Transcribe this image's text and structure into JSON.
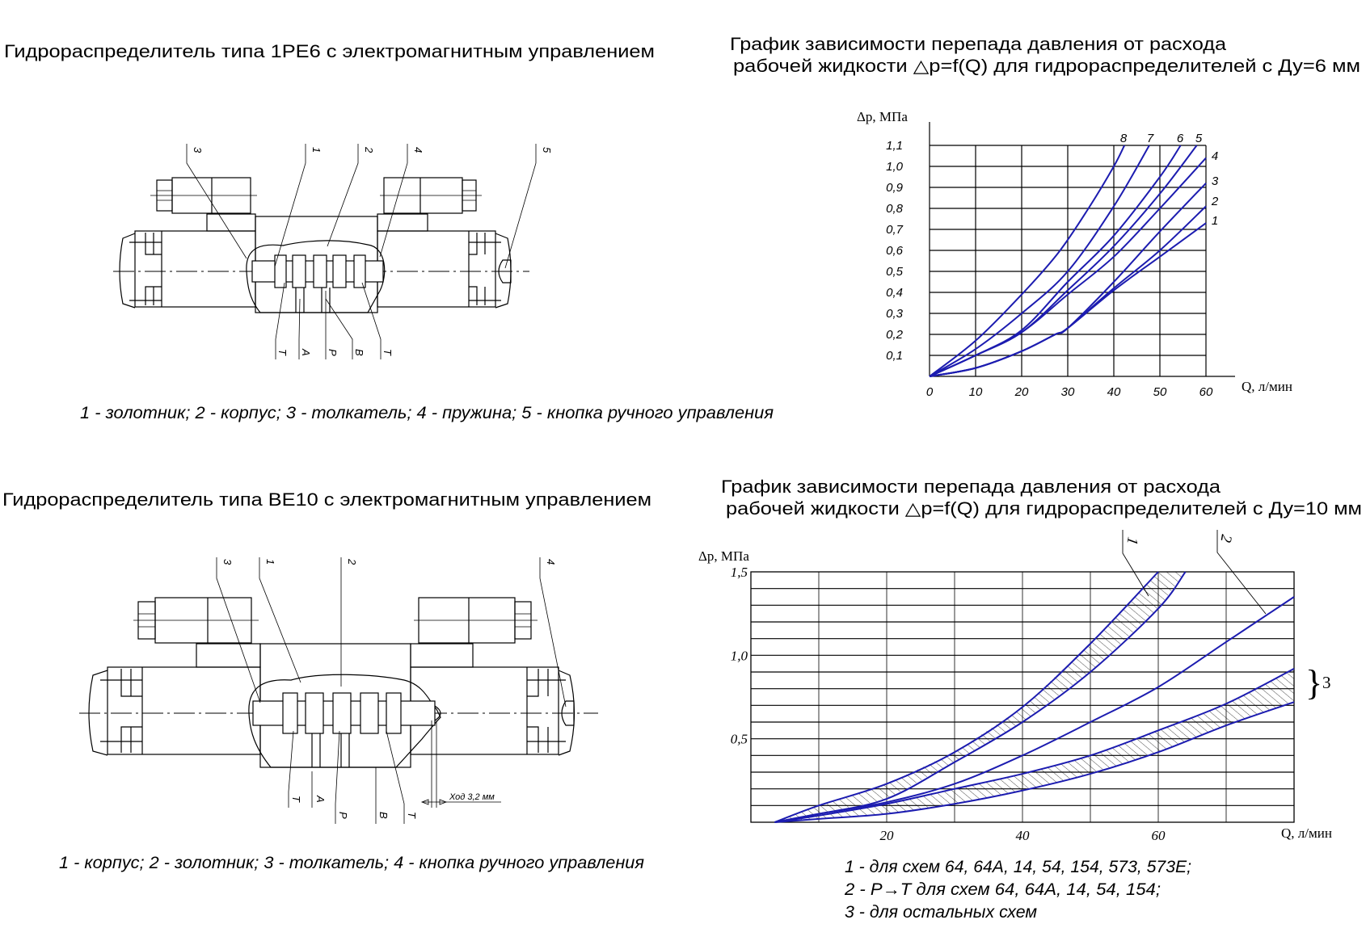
{
  "left_top": {
    "title": "Гидрораспределитель типа 1РЕ6 с электромагнитным управлением",
    "callouts": [
      "3",
      "1",
      "2",
      "4",
      "5"
    ],
    "ports": [
      "T",
      "A",
      "P",
      "B",
      "T"
    ],
    "caption": "1 - золотник; 2 - корпус; 3 - толкатель; 4 - пружина; 5 - кнопка ручного управления"
  },
  "left_bottom": {
    "title": "Гидрораспределитель типа ВЕ10 с электромагнитным управлением",
    "callouts": [
      "3",
      "1",
      "2",
      "4"
    ],
    "ports": [
      "T",
      "A",
      "P",
      "B",
      "T"
    ],
    "stroke_label": "Ход 3,2 мм",
    "caption": "1 - корпус; 2 - золотник; 3 - толкатель; 4 - кнопка ручного управления"
  },
  "curve_color": "#1c1cb0",
  "chart_data": [
    {
      "type": "line",
      "title_lines": [
        "График зависимости перепада давления от расхода",
        "рабочей жидкости △p=f(Q) для гидрораспределителей с Ду=6 мм"
      ],
      "xlabel": "Q, л/мин",
      "ylabel": "Δp, МПа",
      "xlim": [
        0,
        60
      ],
      "ylim": [
        0,
        1.1
      ],
      "grid": true,
      "xticks": [
        "0",
        "10",
        "20",
        "30",
        "40",
        "50",
        "60"
      ],
      "yticks": [
        "0,1",
        "0,2",
        "0,3",
        "0,4",
        "0,5",
        "0,6",
        "0,7",
        "0,8",
        "0,9",
        "1,0",
        "1,1"
      ],
      "series": [
        {
          "name": "8",
          "points": [
            [
              0,
              0
            ],
            [
              10,
              0.17
            ],
            [
              20,
              0.39
            ],
            [
              28,
              0.59
            ],
            [
              34.5,
              0.8
            ],
            [
              40,
              1.0
            ],
            [
              42.3,
              1.1
            ]
          ]
        },
        {
          "name": "7",
          "points": [
            [
              0,
              0
            ],
            [
              10,
              0.13
            ],
            [
              20,
              0.3
            ],
            [
              30,
              0.5
            ],
            [
              40,
              0.81
            ],
            [
              47.7,
              1.1
            ]
          ]
        },
        {
          "name": "6",
          "points": [
            [
              0,
              0
            ],
            [
              10,
              0.1
            ],
            [
              20,
              0.22
            ],
            [
              30,
              0.45
            ],
            [
              40,
              0.67
            ],
            [
              50,
              0.95
            ],
            [
              54.5,
              1.1
            ]
          ]
        },
        {
          "name": "5",
          "points": [
            [
              0,
              0
            ],
            [
              10,
              0.1
            ],
            [
              20,
              0.21
            ],
            [
              30,
              0.41
            ],
            [
              40,
              0.62
            ],
            [
              50,
              0.87
            ],
            [
              58,
              1.1
            ]
          ]
        },
        {
          "name": "4",
          "points": [
            [
              0,
              0
            ],
            [
              10,
              0.1
            ],
            [
              20,
              0.21
            ],
            [
              30,
              0.39
            ],
            [
              40,
              0.57
            ],
            [
              50,
              0.8
            ],
            [
              60,
              1.04
            ]
          ]
        },
        {
          "name": "3",
          "points": [
            [
              0,
              0
            ],
            [
              10,
              0.04
            ],
            [
              20,
              0.12
            ],
            [
              27.3,
              0.2
            ],
            [
              30,
              0.23
            ],
            [
              40,
              0.45
            ],
            [
              50,
              0.69
            ],
            [
              60,
              0.92
            ]
          ]
        },
        {
          "name": "2",
          "points": [
            [
              0,
              0
            ],
            [
              10,
              0.04
            ],
            [
              20,
              0.12
            ],
            [
              27.3,
              0.2
            ],
            [
              30,
              0.23
            ],
            [
              40,
              0.42
            ],
            [
              50,
              0.6
            ],
            [
              60,
              0.81
            ]
          ]
        },
        {
          "name": "1",
          "points": [
            [
              0,
              0
            ],
            [
              10,
              0.04
            ],
            [
              20,
              0.12
            ],
            [
              27.3,
              0.2
            ],
            [
              30,
              0.23
            ],
            [
              40,
              0.41
            ],
            [
              50,
              0.57
            ],
            [
              60,
              0.73
            ]
          ]
        }
      ]
    },
    {
      "type": "line",
      "title_lines": [
        "График зависимости перепада давления от расхода",
        "рабочей жидкости △p=f(Q) для гидрораспределителей с Ду=10 мм"
      ],
      "xlabel": "Q, л/мин",
      "ylabel": "Δp, МПа",
      "xlim": [
        0,
        80
      ],
      "ylim": [
        0,
        1.5
      ],
      "grid": true,
      "xticks": [
        {
          "value": 20,
          "label": "20"
        },
        {
          "value": 40,
          "label": "40"
        },
        {
          "value": 60,
          "label": "60"
        }
      ],
      "yticks": [
        {
          "value": 0.5,
          "label": "0,5"
        },
        {
          "value": 1.0,
          "label": "1,0"
        },
        {
          "value": 1.5,
          "label": "1,5"
        }
      ],
      "series": [
        {
          "name": "1",
          "band": true,
          "upper": [
            [
              3.5,
              0
            ],
            [
              10,
              0.1
            ],
            [
              20,
              0.23
            ],
            [
              30,
              0.42
            ],
            [
              40,
              0.69
            ],
            [
              50,
              1.07
            ],
            [
              60,
              1.5
            ]
          ],
          "lower": [
            [
              3.5,
              0
            ],
            [
              10,
              0.05
            ],
            [
              20,
              0.14
            ],
            [
              30,
              0.36
            ],
            [
              40,
              0.6
            ],
            [
              50,
              0.9
            ],
            [
              60,
              1.28
            ],
            [
              64,
              1.5
            ]
          ]
        },
        {
          "name": "2",
          "band": false,
          "points": [
            [
              3.5,
              0
            ],
            [
              10,
              0.05
            ],
            [
              20,
              0.12
            ],
            [
              30,
              0.23
            ],
            [
              40,
              0.4
            ],
            [
              50,
              0.6
            ],
            [
              60,
              0.81
            ],
            [
              70,
              1.08
            ],
            [
              80,
              1.35
            ]
          ]
        },
        {
          "name": "3",
          "band": true,
          "upper": [
            [
              3.5,
              0
            ],
            [
              10,
              0.04
            ],
            [
              20,
              0.11
            ],
            [
              30,
              0.2
            ],
            [
              40,
              0.29
            ],
            [
              50,
              0.4
            ],
            [
              60,
              0.55
            ],
            [
              70,
              0.71
            ],
            [
              80,
              0.92
            ]
          ],
          "lower": [
            [
              3.5,
              0
            ],
            [
              10,
              0.02
            ],
            [
              20,
              0.05
            ],
            [
              30,
              0.11
            ],
            [
              40,
              0.19
            ],
            [
              50,
              0.29
            ],
            [
              60,
              0.42
            ],
            [
              70,
              0.58
            ],
            [
              80,
              0.72
            ]
          ]
        }
      ],
      "band_bracket": "}",
      "legend": [
        "1 - для схем 64, 64А, 14, 54, 154, 573, 573Е;",
        "2 - P→T для схем 64, 64А, 14, 54, 154;",
        "3 - для остальных схем"
      ]
    }
  ]
}
